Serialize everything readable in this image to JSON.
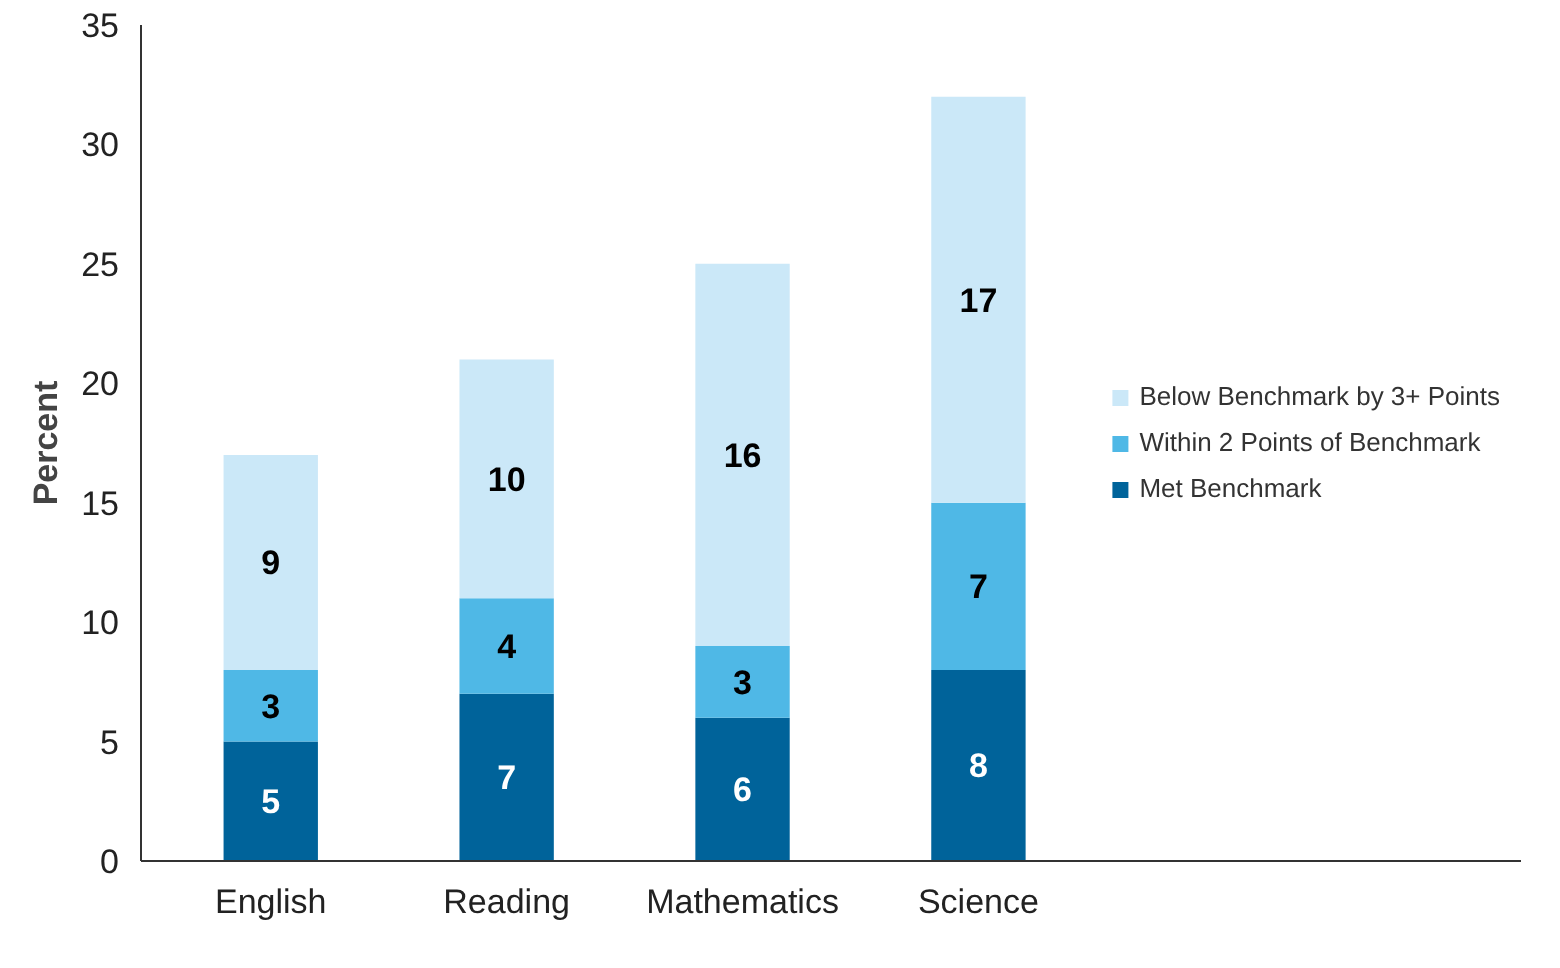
{
  "chart_data": {
    "type": "bar",
    "stacked": true,
    "ylabel": "Percent",
    "categories": [
      "English",
      "Reading",
      "Mathematics",
      "Science"
    ],
    "series": [
      {
        "name": "Met Benchmark",
        "color": "#00639a",
        "values": [
          5,
          7,
          6,
          8
        ]
      },
      {
        "name": "Within 2 Points of Benchmark",
        "color": "#4fb8e6",
        "values": [
          3,
          4,
          3,
          7
        ]
      },
      {
        "name": "Below Benchmark by 3+ Points",
        "color": "#cbe8f8",
        "values": [
          9,
          10,
          16,
          17
        ]
      }
    ],
    "ylim": [
      0,
      35
    ],
    "yticks": [
      0,
      5,
      10,
      15,
      20,
      25,
      30,
      35
    ],
    "data_labels": true,
    "legend": "right",
    "grid": false
  }
}
